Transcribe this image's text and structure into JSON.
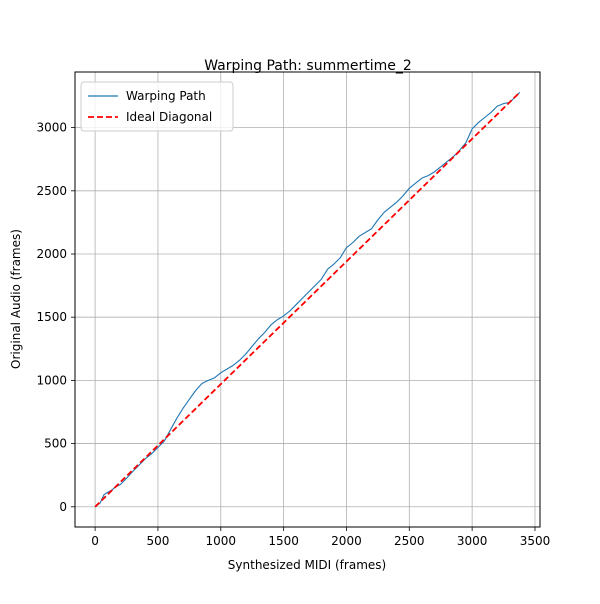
{
  "chart_data": {
    "type": "line",
    "title": "Warping Path: summertime_2",
    "xlabel": "Synthesized MIDI (frames)",
    "ylabel": "Original Audio (frames)",
    "xlim": [
      -160,
      3540
    ],
    "ylim": [
      -160,
      3440
    ],
    "xticks": [
      0,
      500,
      1000,
      1500,
      2000,
      2500,
      3000,
      3500
    ],
    "yticks": [
      0,
      500,
      1000,
      1500,
      2000,
      2500,
      3000
    ],
    "grid": true,
    "legend_position": "top-left",
    "series": [
      {
        "name": "Warping Path",
        "style": "solid",
        "color": "#1f77b4",
        "x": [
          0,
          40,
          70,
          100,
          130,
          160,
          200,
          250,
          300,
          350,
          400,
          450,
          500,
          550,
          600,
          650,
          700,
          750,
          800,
          850,
          900,
          950,
          1000,
          1050,
          1100,
          1150,
          1200,
          1250,
          1300,
          1350,
          1400,
          1450,
          1500,
          1550,
          1600,
          1650,
          1700,
          1750,
          1800,
          1850,
          1900,
          1950,
          2000,
          2050,
          2100,
          2150,
          2200,
          2250,
          2300,
          2350,
          2400,
          2450,
          2500,
          2550,
          2600,
          2650,
          2700,
          2750,
          2800,
          2850,
          2900,
          2950,
          3000,
          3050,
          3100,
          3150,
          3200,
          3250,
          3300,
          3380
        ],
        "y": [
          0,
          30,
          95,
          115,
          130,
          155,
          175,
          225,
          280,
          330,
          380,
          420,
          470,
          520,
          610,
          700,
          780,
          850,
          920,
          975,
          1000,
          1020,
          1060,
          1090,
          1120,
          1160,
          1210,
          1270,
          1330,
          1380,
          1440,
          1480,
          1510,
          1550,
          1600,
          1650,
          1700,
          1750,
          1800,
          1880,
          1920,
          1970,
          2050,
          2090,
          2140,
          2170,
          2200,
          2270,
          2330,
          2370,
          2410,
          2460,
          2520,
          2560,
          2600,
          2620,
          2650,
          2690,
          2730,
          2770,
          2820,
          2880,
          2990,
          3040,
          3080,
          3120,
          3170,
          3190,
          3200,
          3280
        ]
      },
      {
        "name": "Ideal Diagonal",
        "style": "dashed",
        "color": "#ff0000",
        "x": [
          0,
          3380
        ],
        "y": [
          0,
          3280
        ]
      }
    ]
  }
}
